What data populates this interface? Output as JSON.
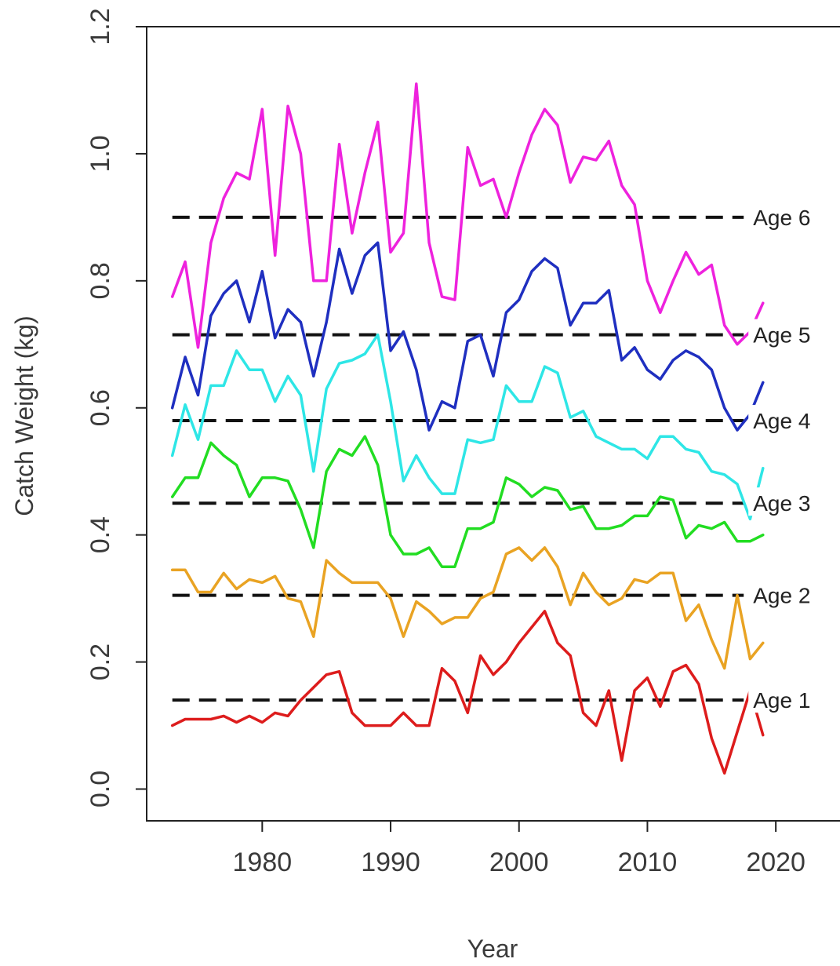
{
  "chart_data": {
    "type": "line",
    "title": "",
    "xlabel": "Year",
    "ylabel": "Catch Weight (kg)",
    "xlim": [
      1971,
      2025
    ],
    "ylim": [
      -0.05,
      1.2
    ],
    "x_ticks": [
      1980,
      1990,
      2000,
      2010,
      2020
    ],
    "y_ticks": [
      0.0,
      0.2,
      0.4,
      0.6,
      0.8,
      1.0,
      1.2
    ],
    "y_tick_labels": [
      "0.0",
      "0.2",
      "0.4",
      "0.6",
      "0.8",
      "1.0",
      "1.2"
    ],
    "grid": false,
    "x": [
      1973,
      1974,
      1975,
      1976,
      1977,
      1978,
      1979,
      1980,
      1981,
      1982,
      1983,
      1984,
      1985,
      1986,
      1987,
      1988,
      1989,
      1990,
      1991,
      1992,
      1993,
      1994,
      1995,
      1996,
      1997,
      1998,
      1999,
      2000,
      2001,
      2002,
      2003,
      2004,
      2005,
      2006,
      2007,
      2008,
      2009,
      2010,
      2011,
      2012,
      2013,
      2014,
      2015,
      2016,
      2017,
      2018,
      2019
    ],
    "series": [
      {
        "color": "#dd1c1c",
        "values": [
          0.1,
          0.11,
          0.11,
          0.11,
          0.115,
          0.105,
          0.115,
          0.105,
          0.12,
          0.115,
          0.14,
          0.16,
          0.18,
          0.185,
          0.12,
          0.1,
          0.1,
          0.1,
          0.12,
          0.1,
          0.1,
          0.19,
          0.17,
          0.12,
          0.21,
          0.18,
          0.2,
          0.23,
          0.255,
          0.28,
          0.23,
          0.21,
          0.12,
          0.1,
          0.155,
          0.045,
          0.155,
          0.175,
          0.13,
          0.185,
          0.195,
          0.165,
          0.08,
          0.025,
          0.09,
          0.155,
          0.085
        ]
      },
      {
        "color": "#e9a323",
        "values": [
          0.345,
          0.345,
          0.31,
          0.31,
          0.34,
          0.315,
          0.33,
          0.325,
          0.335,
          0.3,
          0.295,
          0.24,
          0.36,
          0.34,
          0.325,
          0.325,
          0.325,
          0.3,
          0.24,
          0.295,
          0.28,
          0.26,
          0.27,
          0.27,
          0.3,
          0.31,
          0.37,
          0.38,
          0.36,
          0.38,
          0.35,
          0.29,
          0.34,
          0.31,
          0.29,
          0.3,
          0.33,
          0.325,
          0.34,
          0.34,
          0.265,
          0.29,
          0.235,
          0.19,
          0.305,
          0.205,
          0.23
        ]
      },
      {
        "color": "#22dd22",
        "values": [
          0.46,
          0.49,
          0.49,
          0.545,
          0.525,
          0.51,
          0.46,
          0.49,
          0.49,
          0.485,
          0.44,
          0.38,
          0.5,
          0.535,
          0.525,
          0.555,
          0.51,
          0.4,
          0.37,
          0.37,
          0.38,
          0.35,
          0.35,
          0.41,
          0.41,
          0.42,
          0.49,
          0.48,
          0.46,
          0.475,
          0.47,
          0.44,
          0.445,
          0.41,
          0.41,
          0.415,
          0.43,
          0.43,
          0.46,
          0.455,
          0.395,
          0.415,
          0.41,
          0.42,
          0.39,
          0.39,
          0.4
        ]
      },
      {
        "color": "#2ee6e6",
        "values": [
          0.525,
          0.605,
          0.55,
          0.635,
          0.635,
          0.69,
          0.66,
          0.66,
          0.61,
          0.65,
          0.62,
          0.5,
          0.63,
          0.67,
          0.675,
          0.685,
          0.715,
          0.61,
          0.485,
          0.525,
          0.49,
          0.465,
          0.465,
          0.55,
          0.545,
          0.55,
          0.635,
          0.61,
          0.61,
          0.665,
          0.655,
          0.585,
          0.595,
          0.555,
          0.545,
          0.535,
          0.535,
          0.52,
          0.555,
          0.555,
          0.535,
          0.53,
          0.5,
          0.495,
          0.48,
          0.425,
          0.505
        ]
      },
      {
        "color": "#1f2fc0",
        "values": [
          0.6,
          0.68,
          0.62,
          0.745,
          0.78,
          0.8,
          0.735,
          0.815,
          0.71,
          0.755,
          0.735,
          0.65,
          0.735,
          0.85,
          0.78,
          0.84,
          0.86,
          0.69,
          0.72,
          0.66,
          0.565,
          0.61,
          0.6,
          0.705,
          0.715,
          0.65,
          0.75,
          0.77,
          0.815,
          0.835,
          0.82,
          0.73,
          0.765,
          0.765,
          0.785,
          0.675,
          0.695,
          0.66,
          0.645,
          0.675,
          0.69,
          0.68,
          0.66,
          0.6,
          0.565,
          0.59,
          0.64
        ]
      },
      {
        "color": "#ee22dd",
        "values": [
          0.775,
          0.83,
          0.695,
          0.86,
          0.93,
          0.97,
          0.96,
          1.07,
          0.84,
          1.075,
          1.0,
          0.8,
          0.8,
          1.015,
          0.875,
          0.97,
          1.05,
          0.845,
          0.875,
          1.11,
          0.86,
          0.775,
          0.77,
          1.01,
          0.95,
          0.96,
          0.9,
          0.97,
          1.03,
          1.07,
          1.045,
          0.955,
          0.995,
          0.99,
          1.02,
          0.95,
          0.92,
          0.8,
          0.75,
          0.8,
          0.845,
          0.81,
          0.825,
          0.73,
          0.7,
          0.72,
          0.765
        ]
      }
    ],
    "reference_lines": [
      {
        "label": "Age 1",
        "value": 0.14
      },
      {
        "label": "Age 2",
        "value": 0.305
      },
      {
        "label": "Age 3",
        "value": 0.45
      },
      {
        "label": "Age 4",
        "value": 0.58
      },
      {
        "label": "Age 5",
        "value": 0.715
      },
      {
        "label": "Age 6",
        "value": 0.9
      }
    ],
    "reference_line_style": {
      "color": "#111111",
      "dash": "dashed"
    }
  }
}
